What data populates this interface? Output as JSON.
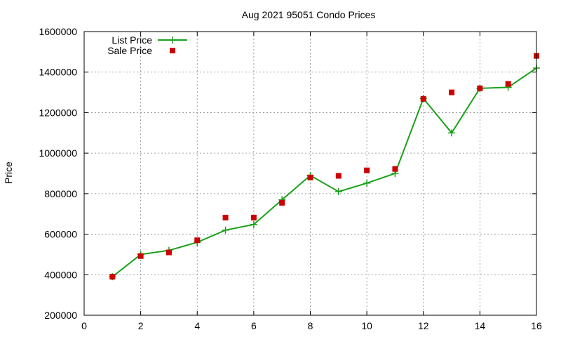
{
  "chart_data": {
    "type": "line",
    "title": "Aug 2021 95051 Condo Prices",
    "xlabel": "",
    "ylabel": "Price",
    "xlim": [
      0,
      16
    ],
    "ylim": [
      200000,
      1600000
    ],
    "xticks": [
      0,
      2,
      4,
      6,
      8,
      10,
      12,
      14,
      16
    ],
    "yticks": [
      200000,
      400000,
      600000,
      800000,
      1000000,
      1200000,
      1400000,
      1600000
    ],
    "grid": true,
    "legend_position": "top-left",
    "series": [
      {
        "name": "List Price",
        "style": "line-with-plus-markers",
        "color": "#1aa01a",
        "x": [
          1,
          2,
          3,
          4,
          5,
          6,
          7,
          8,
          9,
          10,
          11,
          12,
          13,
          14,
          15,
          16
        ],
        "values": [
          390000,
          500000,
          520000,
          560000,
          620000,
          648000,
          770000,
          890000,
          810000,
          852000,
          900000,
          1270000,
          1100000,
          1320000,
          1325000,
          1420000
        ]
      },
      {
        "name": "Sale Price",
        "style": "square-markers",
        "color": "#cc0000",
        "x": [
          1,
          2,
          3,
          4,
          5,
          6,
          7,
          8,
          9,
          10,
          11,
          12,
          13,
          14,
          15,
          16
        ],
        "values": [
          390000,
          492000,
          510000,
          570000,
          682000,
          682000,
          755000,
          880000,
          888000,
          915000,
          922000,
          1268000,
          1300000,
          1320000,
          1342000,
          1480000
        ]
      }
    ]
  }
}
